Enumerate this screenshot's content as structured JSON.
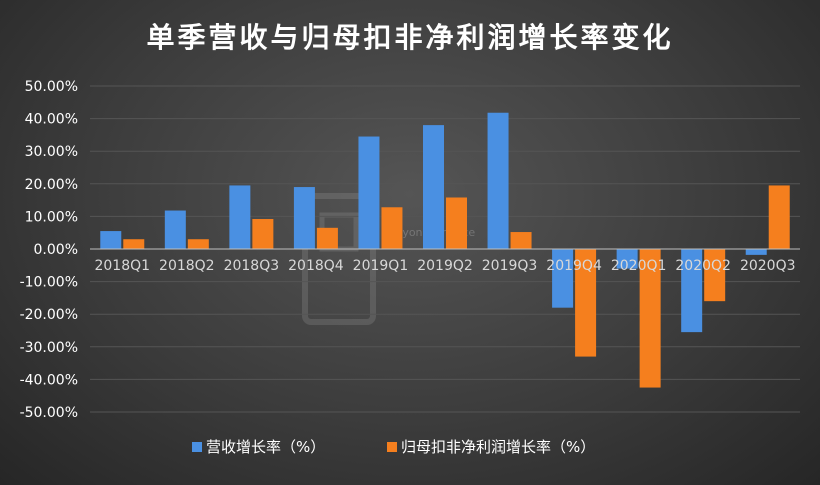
{
  "chart_data": {
    "type": "bar",
    "title": "单季营收与归母扣非净利润增长率变化",
    "categories": [
      "2018Q1",
      "2018Q2",
      "2018Q3",
      "2018Q4",
      "2019Q1",
      "2019Q2",
      "2019Q3",
      "2019Q4",
      "2020Q1",
      "2020Q2",
      "2020Q3"
    ],
    "series": [
      {
        "name": "营收增长率（%）",
        "color": "#4a90e2",
        "values": [
          5.5,
          11.8,
          19.5,
          19.0,
          34.5,
          38.0,
          41.8,
          -18.0,
          -6.0,
          -25.5,
          -1.8
        ]
      },
      {
        "name": "归母扣非净利润增长率（%）",
        "color": "#f57f1e",
        "values": [
          3.0,
          3.0,
          9.2,
          6.5,
          12.8,
          15.8,
          5.2,
          -33.0,
          -42.5,
          -16.0,
          19.5
        ]
      }
    ],
    "yticks": [
      "50.00%",
      "40.00%",
      "30.00%",
      "20.00%",
      "10.00%",
      "0.00%",
      "-10.00%",
      "-20.00%",
      "-30.00%",
      "-40.00%",
      "-50.00%"
    ],
    "ylim": [
      -50,
      50
    ],
    "grid": true,
    "legend_position": "bottom"
  },
  "colors": {
    "grid": "#555555",
    "background": "#3a3a3a"
  },
  "watermark_text": "Beyond Finance"
}
